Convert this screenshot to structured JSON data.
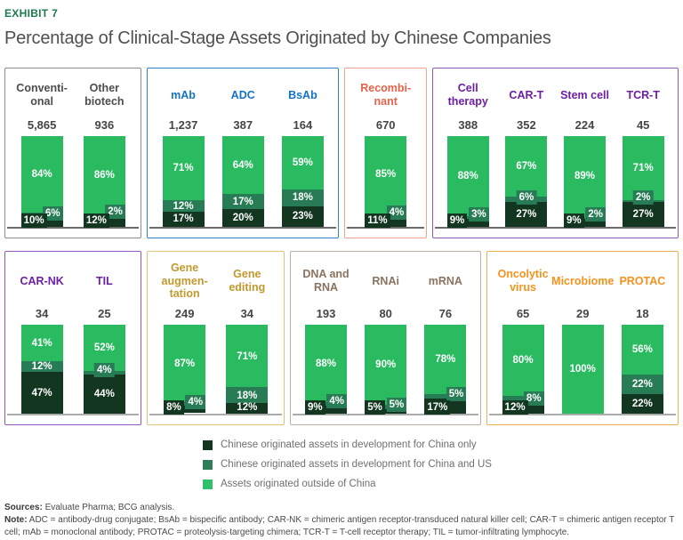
{
  "header": {
    "exhibit_label": "EXHIBIT 7",
    "title": "Percentage of Clinical-Stage Assets Originated by Chinese Companies"
  },
  "colors": {
    "china_only": "#123620",
    "china_and_us": "#277C55",
    "outside_china": "#2ABB61"
  },
  "legend": {
    "items": [
      {
        "key": "china_only",
        "color": "#123620",
        "label": "Chinese originated assets in development for China only"
      },
      {
        "key": "china_and_us",
        "color": "#2E7D5B",
        "label": "Chinese originated assets in development for China and US"
      },
      {
        "key": "outside_china",
        "color": "#2EC16A",
        "label": "Assets originated outside of China"
      }
    ]
  },
  "footer": {
    "sources_label": "Sources:",
    "sources_text": " Evaluate Pharma; BCG analysis.",
    "note_label": "Note:",
    "note_text": " ADC = antibody-drug conjugate; BsAb = bispecific antibody; CAR-NK = chimeric antigen receptor-transduced natural killer cell; CAR-T = chimeric antigen receptor T cell; mAb = monoclonal antibody; PROTAC = proteolysis-targeting chimera; TCR-T = T-cell receptor therapy; TIL = tumor-infiltrating lymphocyte."
  },
  "chart_data": {
    "type": "bar",
    "stacked": true,
    "unit": "percent",
    "series_meaning": {
      "outside_china": "Assets originated outside of China (light green, top)",
      "china_and_us": "Chinese originated assets in development for China and US (medium green, middle)",
      "china_only": "Chinese originated assets in development for China only (dark green, bottom)"
    },
    "groups": [
      {
        "id": "conventional-and-other-biotech",
        "row": 1,
        "accent": "gray",
        "columns": [
          {
            "label": "Conventi-\nonal",
            "count": "5,865",
            "outside_china": 84,
            "china_and_us": 6,
            "china_only": 10
          },
          {
            "label": "Other\nbiotech",
            "count": "936",
            "outside_china": 86,
            "china_and_us": 2,
            "china_only": 12
          }
        ]
      },
      {
        "id": "antibodies",
        "row": 1,
        "accent": "blue",
        "columns": [
          {
            "label": "mAb",
            "count": "1,237",
            "outside_china": 71,
            "china_and_us": 12,
            "china_only": 17
          },
          {
            "label": "ADC",
            "count": "387",
            "outside_china": 64,
            "china_and_us": 17,
            "china_only": 20
          },
          {
            "label": "BsAb",
            "count": "164",
            "outside_china": 59,
            "china_and_us": 18,
            "china_only": 23
          }
        ]
      },
      {
        "id": "recombinant",
        "row": 1,
        "accent": "coral",
        "columns": [
          {
            "label": "Recombi-\nnant",
            "count": "670",
            "outside_china": 85,
            "china_and_us": 4,
            "china_only": 11
          }
        ]
      },
      {
        "id": "cell-therapy",
        "row": 1,
        "accent": "purple",
        "columns": [
          {
            "label": "Cell\ntherapy",
            "count": "388",
            "outside_china": 88,
            "china_and_us": 3,
            "china_only": 9
          },
          {
            "label": "CAR-T",
            "count": "352",
            "outside_china": 67,
            "china_and_us": 6,
            "china_only": 27
          },
          {
            "label": "Stem cell",
            "count": "224",
            "outside_china": 89,
            "china_and_us": 2,
            "china_only": 9
          },
          {
            "label": "TCR-T",
            "count": "45",
            "outside_china": 71,
            "china_and_us": 2,
            "china_only": 27
          }
        ]
      },
      {
        "id": "car-nk-and-til",
        "row": 2,
        "accent": "purple",
        "columns": [
          {
            "label": "CAR-NK",
            "count": "34",
            "outside_china": 41,
            "china_and_us": 12,
            "china_only": 47
          },
          {
            "label": "TIL",
            "count": "25",
            "outside_china": 52,
            "china_and_us": 4,
            "china_only": 44
          }
        ]
      },
      {
        "id": "gene-therapy",
        "row": 2,
        "accent": "gold",
        "columns": [
          {
            "label": "Gene\naugmen-\ntation",
            "count": "249",
            "outside_china": 87,
            "china_and_us": 4,
            "china_only": 8
          },
          {
            "label": "Gene\nediting",
            "count": "34",
            "outside_china": 71,
            "china_and_us": 18,
            "china_only": 12
          }
        ]
      },
      {
        "id": "nucleic-acids",
        "row": 2,
        "accent": "taupe",
        "columns": [
          {
            "label": "DNA and\nRNA",
            "count": "193",
            "outside_china": 88,
            "china_and_us": 4,
            "china_only": 9
          },
          {
            "label": "RNAi",
            "count": "80",
            "outside_china": 90,
            "china_and_us": 5,
            "china_only": 5
          },
          {
            "label": "mRNA",
            "count": "76",
            "outside_china": 78,
            "china_and_us": 5,
            "china_only": 17
          }
        ]
      },
      {
        "id": "other-modalities",
        "row": 2,
        "accent": "orange",
        "columns": [
          {
            "label": "Oncolytic\nvirus",
            "count": "65",
            "outside_china": 80,
            "china_and_us": 8,
            "china_only": 12
          },
          {
            "label": "Microbiome",
            "count": "29",
            "outside_china": 100,
            "china_and_us": 0,
            "china_only": 0
          },
          {
            "label": "PROTAC",
            "count": "18",
            "outside_china": 56,
            "china_and_us": 22,
            "china_only": 22
          }
        ]
      }
    ]
  }
}
